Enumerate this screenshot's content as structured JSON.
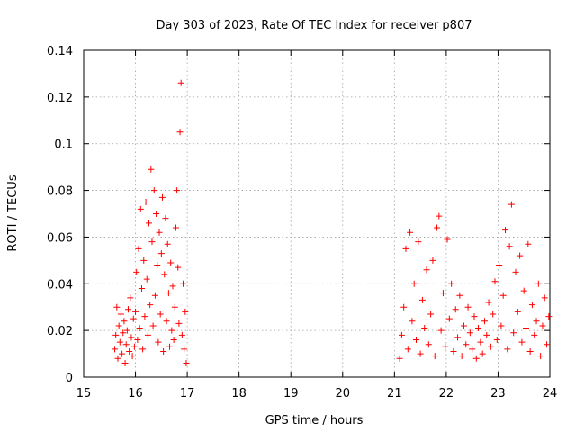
{
  "chart_data": {
    "type": "scatter",
    "title": "Day 303 of 2023, Rate Of TEC Index for receiver p807",
    "xlabel": "GPS time / hours",
    "ylabel": "ROTI / TECUs",
    "xlim": [
      15,
      24
    ],
    "ylim": [
      0,
      0.14
    ],
    "xticks": [
      15,
      16,
      17,
      18,
      19,
      20,
      21,
      22,
      23,
      24
    ],
    "yticks": [
      0,
      0.02,
      0.04,
      0.06,
      0.08,
      0.1,
      0.12,
      0.14
    ],
    "ytick_labels": [
      "0",
      "0.02",
      "0.04",
      "0.06",
      "0.08",
      "0.1",
      "0.12",
      "0.14"
    ],
    "grid": true,
    "marker": "+",
    "color": "#ff0000",
    "series": [
      {
        "name": "ROTI",
        "points": [
          [
            15.6,
            0.012
          ],
          [
            15.62,
            0.018
          ],
          [
            15.64,
            0.03
          ],
          [
            15.66,
            0.008
          ],
          [
            15.68,
            0.022
          ],
          [
            15.7,
            0.015
          ],
          [
            15.72,
            0.027
          ],
          [
            15.74,
            0.01
          ],
          [
            15.76,
            0.019
          ],
          [
            15.78,
            0.024
          ],
          [
            15.8,
            0.006
          ],
          [
            15.82,
            0.014
          ],
          [
            15.84,
            0.02
          ],
          [
            15.86,
            0.029
          ],
          [
            15.88,
            0.011
          ],
          [
            15.9,
            0.034
          ],
          [
            15.92,
            0.017
          ],
          [
            15.94,
            0.009
          ],
          [
            15.96,
            0.025
          ],
          [
            15.98,
            0.013
          ],
          [
            16.0,
            0.028
          ],
          [
            16.02,
            0.045
          ],
          [
            16.04,
            0.016
          ],
          [
            16.06,
            0.055
          ],
          [
            16.08,
            0.021
          ],
          [
            16.1,
            0.072
          ],
          [
            16.12,
            0.038
          ],
          [
            16.14,
            0.012
          ],
          [
            16.16,
            0.05
          ],
          [
            16.18,
            0.026
          ],
          [
            16.2,
            0.075
          ],
          [
            16.22,
            0.042
          ],
          [
            16.24,
            0.018
          ],
          [
            16.26,
            0.066
          ],
          [
            16.28,
            0.031
          ],
          [
            16.3,
            0.089
          ],
          [
            16.32,
            0.058
          ],
          [
            16.34,
            0.022
          ],
          [
            16.36,
            0.08
          ],
          [
            16.38,
            0.035
          ],
          [
            16.4,
            0.07
          ],
          [
            16.42,
            0.048
          ],
          [
            16.44,
            0.015
          ],
          [
            16.46,
            0.062
          ],
          [
            16.48,
            0.027
          ],
          [
            16.5,
            0.053
          ],
          [
            16.52,
            0.077
          ],
          [
            16.54,
            0.011
          ],
          [
            16.56,
            0.044
          ],
          [
            16.58,
            0.068
          ],
          [
            16.6,
            0.024
          ],
          [
            16.62,
            0.057
          ],
          [
            16.64,
            0.036
          ],
          [
            16.66,
            0.013
          ],
          [
            16.68,
            0.049
          ],
          [
            16.7,
            0.02
          ],
          [
            16.72,
            0.039
          ],
          [
            16.74,
            0.016
          ],
          [
            16.76,
            0.03
          ],
          [
            16.78,
            0.064
          ],
          [
            16.8,
            0.08
          ],
          [
            16.82,
            0.047
          ],
          [
            16.84,
            0.023
          ],
          [
            16.86,
            0.105
          ],
          [
            16.88,
            0.126
          ],
          [
            16.9,
            0.018
          ],
          [
            16.92,
            0.04
          ],
          [
            16.94,
            0.012
          ],
          [
            16.96,
            0.028
          ],
          [
            16.98,
            0.006
          ],
          [
            21.1,
            0.008
          ],
          [
            21.14,
            0.018
          ],
          [
            21.18,
            0.03
          ],
          [
            21.22,
            0.055
          ],
          [
            21.26,
            0.012
          ],
          [
            21.3,
            0.062
          ],
          [
            21.34,
            0.024
          ],
          [
            21.38,
            0.04
          ],
          [
            21.42,
            0.016
          ],
          [
            21.46,
            0.058
          ],
          [
            21.5,
            0.01
          ],
          [
            21.54,
            0.033
          ],
          [
            21.58,
            0.021
          ],
          [
            21.62,
            0.046
          ],
          [
            21.66,
            0.014
          ],
          [
            21.7,
            0.027
          ],
          [
            21.74,
            0.05
          ],
          [
            21.78,
            0.009
          ],
          [
            21.82,
            0.064
          ],
          [
            21.86,
            0.069
          ],
          [
            21.9,
            0.02
          ],
          [
            21.94,
            0.036
          ],
          [
            21.98,
            0.013
          ],
          [
            22.02,
            0.059
          ],
          [
            22.06,
            0.025
          ],
          [
            22.1,
            0.04
          ],
          [
            22.14,
            0.011
          ],
          [
            22.18,
            0.029
          ],
          [
            22.22,
            0.017
          ],
          [
            22.26,
            0.035
          ],
          [
            22.3,
            0.009
          ],
          [
            22.34,
            0.022
          ],
          [
            22.38,
            0.014
          ],
          [
            22.42,
            0.03
          ],
          [
            22.46,
            0.019
          ],
          [
            22.5,
            0.012
          ],
          [
            22.54,
            0.026
          ],
          [
            22.58,
            0.008
          ],
          [
            22.62,
            0.021
          ],
          [
            22.66,
            0.015
          ],
          [
            22.7,
            0.01
          ],
          [
            22.74,
            0.024
          ],
          [
            22.78,
            0.018
          ],
          [
            22.82,
            0.032
          ],
          [
            22.86,
            0.013
          ],
          [
            22.9,
            0.027
          ],
          [
            22.94,
            0.041
          ],
          [
            22.98,
            0.016
          ],
          [
            23.02,
            0.048
          ],
          [
            23.06,
            0.022
          ],
          [
            23.1,
            0.035
          ],
          [
            23.14,
            0.063
          ],
          [
            23.18,
            0.012
          ],
          [
            23.22,
            0.056
          ],
          [
            23.26,
            0.074
          ],
          [
            23.3,
            0.019
          ],
          [
            23.34,
            0.045
          ],
          [
            23.38,
            0.028
          ],
          [
            23.42,
            0.052
          ],
          [
            23.46,
            0.015
          ],
          [
            23.5,
            0.037
          ],
          [
            23.54,
            0.021
          ],
          [
            23.58,
            0.057
          ],
          [
            23.62,
            0.011
          ],
          [
            23.66,
            0.031
          ],
          [
            23.7,
            0.018
          ],
          [
            23.74,
            0.024
          ],
          [
            23.78,
            0.04
          ],
          [
            23.82,
            0.009
          ],
          [
            23.86,
            0.022
          ],
          [
            23.9,
            0.034
          ],
          [
            23.94,
            0.014
          ],
          [
            23.98,
            0.026
          ]
        ]
      }
    ]
  }
}
